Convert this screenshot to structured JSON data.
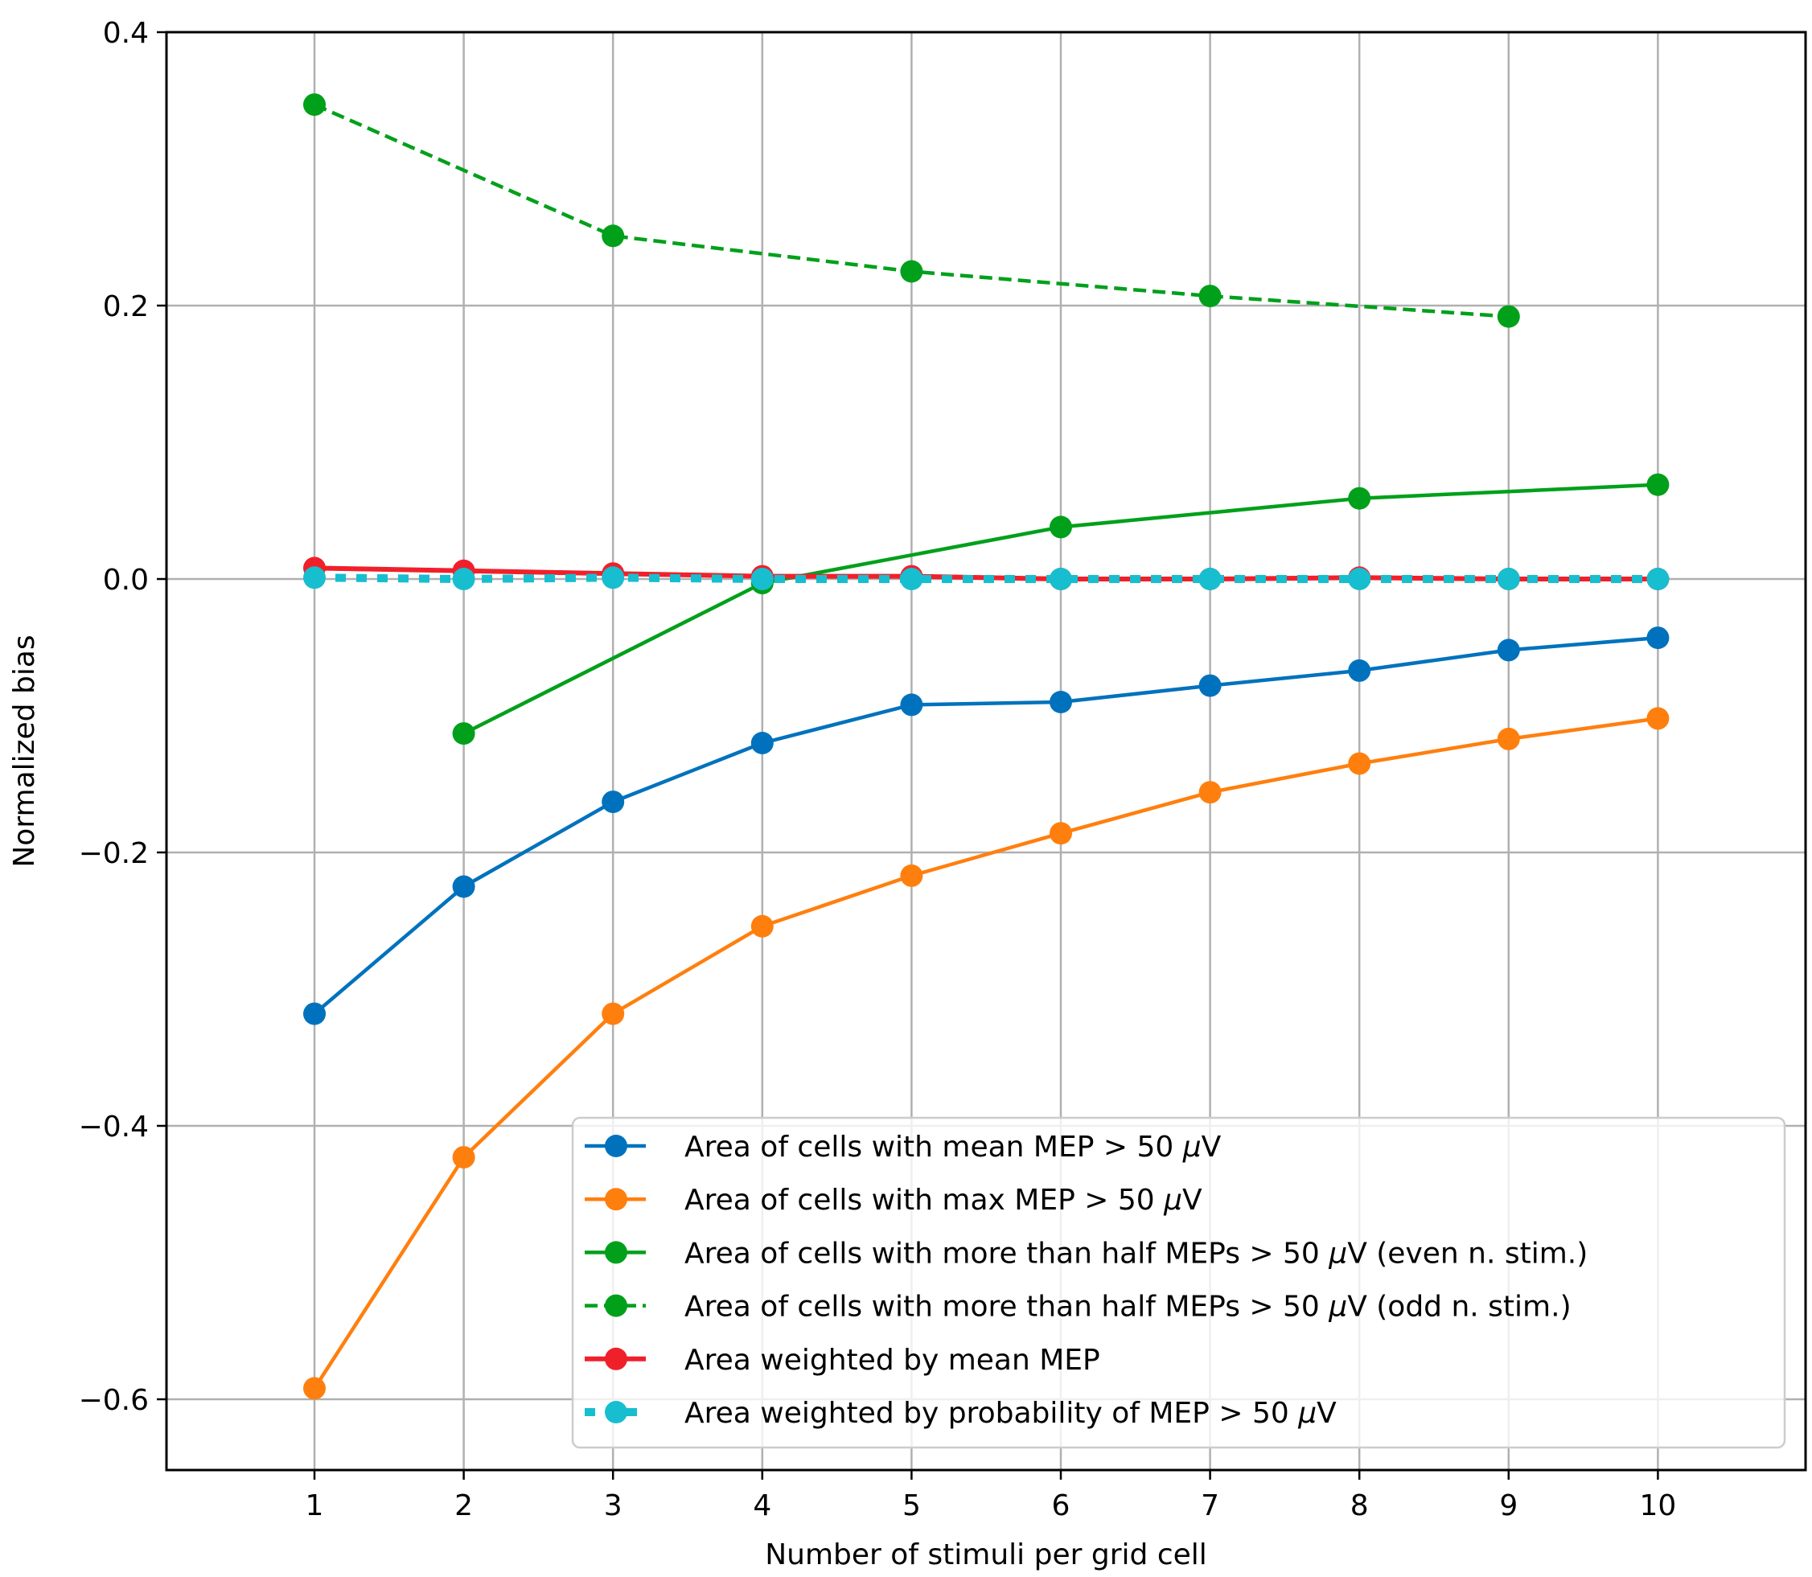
{
  "chart_data": {
    "type": "line",
    "title": "",
    "xlabel": "Number of stimuli per grid cell",
    "ylabel": "Normalized bias",
    "xlim": [
      0,
      11
    ],
    "ylim": [
      -0.65,
      0.4
    ],
    "xticks": [
      1,
      2,
      3,
      4,
      5,
      6,
      7,
      8,
      9,
      10
    ],
    "xtick_labels": [
      "1",
      "2",
      "3",
      "4",
      "5",
      "6",
      "7",
      "8",
      "9",
      "10"
    ],
    "yticks": [
      0.4,
      0.2,
      0.0,
      -0.2,
      -0.4,
      -0.6
    ],
    "ytick_labels": [
      "0.4",
      "0.2",
      "0.0",
      "−0.2",
      "−0.4",
      "−0.6"
    ],
    "grid": true,
    "legend_position": "bottom-right",
    "series": [
      {
        "name": "Area of cells with mean MEP > 50 μV",
        "label_pre": "Area of cells with mean MEP > 50 ",
        "label_mu": "μ",
        "label_post": "V",
        "color": "#0072bd",
        "dash": "solid",
        "x": [
          1,
          2,
          3,
          4,
          5,
          6,
          7,
          8,
          9,
          10
        ],
        "y": [
          -0.318,
          -0.225,
          -0.163,
          -0.12,
          -0.092,
          -0.09,
          -0.078,
          -0.067,
          -0.052,
          -0.043
        ]
      },
      {
        "name": "Area of cells with max MEP > 50 μV",
        "label_pre": "Area of cells with max MEP > 50 ",
        "label_mu": "μ",
        "label_post": "V",
        "color": "#ff7f0e",
        "dash": "solid",
        "x": [
          1,
          2,
          3,
          4,
          5,
          6,
          7,
          8,
          9,
          10
        ],
        "y": [
          -0.592,
          -0.423,
          -0.318,
          -0.254,
          -0.217,
          -0.186,
          -0.156,
          -0.135,
          -0.117,
          -0.102
        ]
      },
      {
        "name": "Area of cells with more than half MEPs > 50 μV (even n. stim.)",
        "label_pre": "Area of cells with more than half MEPs > 50 ",
        "label_mu": "μ",
        "label_post": "V (even n. stim.)",
        "color": "#00a01a",
        "dash": "solid",
        "x": [
          2,
          4,
          6,
          8,
          10
        ],
        "y": [
          -0.113,
          -0.003,
          0.038,
          0.059,
          0.069
        ]
      },
      {
        "name": "Area of cells with more than half MEPs > 50 μV (odd n. stim.)",
        "label_pre": "Area of cells with more than half MEPs > 50 ",
        "label_mu": "μ",
        "label_post": "V (odd n. stim.)",
        "color": "#00a01a",
        "dash": "dashed",
        "x": [
          1,
          3,
          5,
          7,
          9
        ],
        "y": [
          0.347,
          0.251,
          0.225,
          0.207,
          0.192
        ]
      },
      {
        "name": "Area weighted by mean MEP",
        "label_pre": "Area weighted by mean MEP",
        "label_mu": "",
        "label_post": "",
        "color": "#f0202a",
        "dash": "solid",
        "x": [
          1,
          2,
          3,
          4,
          5,
          6,
          7,
          8,
          9,
          10
        ],
        "y": [
          0.008,
          0.006,
          0.004,
          0.002,
          0.002,
          0.0,
          0.0,
          0.001,
          0.0,
          0.0
        ]
      },
      {
        "name": "Area weighted by probability of MEP > 50 μV",
        "label_pre": "Area weighted by probability of MEP > 50 ",
        "label_mu": "μ",
        "label_post": "V",
        "color": "#17becf",
        "dash": "dotted",
        "x": [
          1,
          2,
          3,
          4,
          5,
          6,
          7,
          8,
          9,
          10
        ],
        "y": [
          0.001,
          0.0,
          0.001,
          0.0,
          0.0,
          0.0,
          0.0,
          0.0,
          0.0,
          0.0
        ]
      }
    ]
  }
}
